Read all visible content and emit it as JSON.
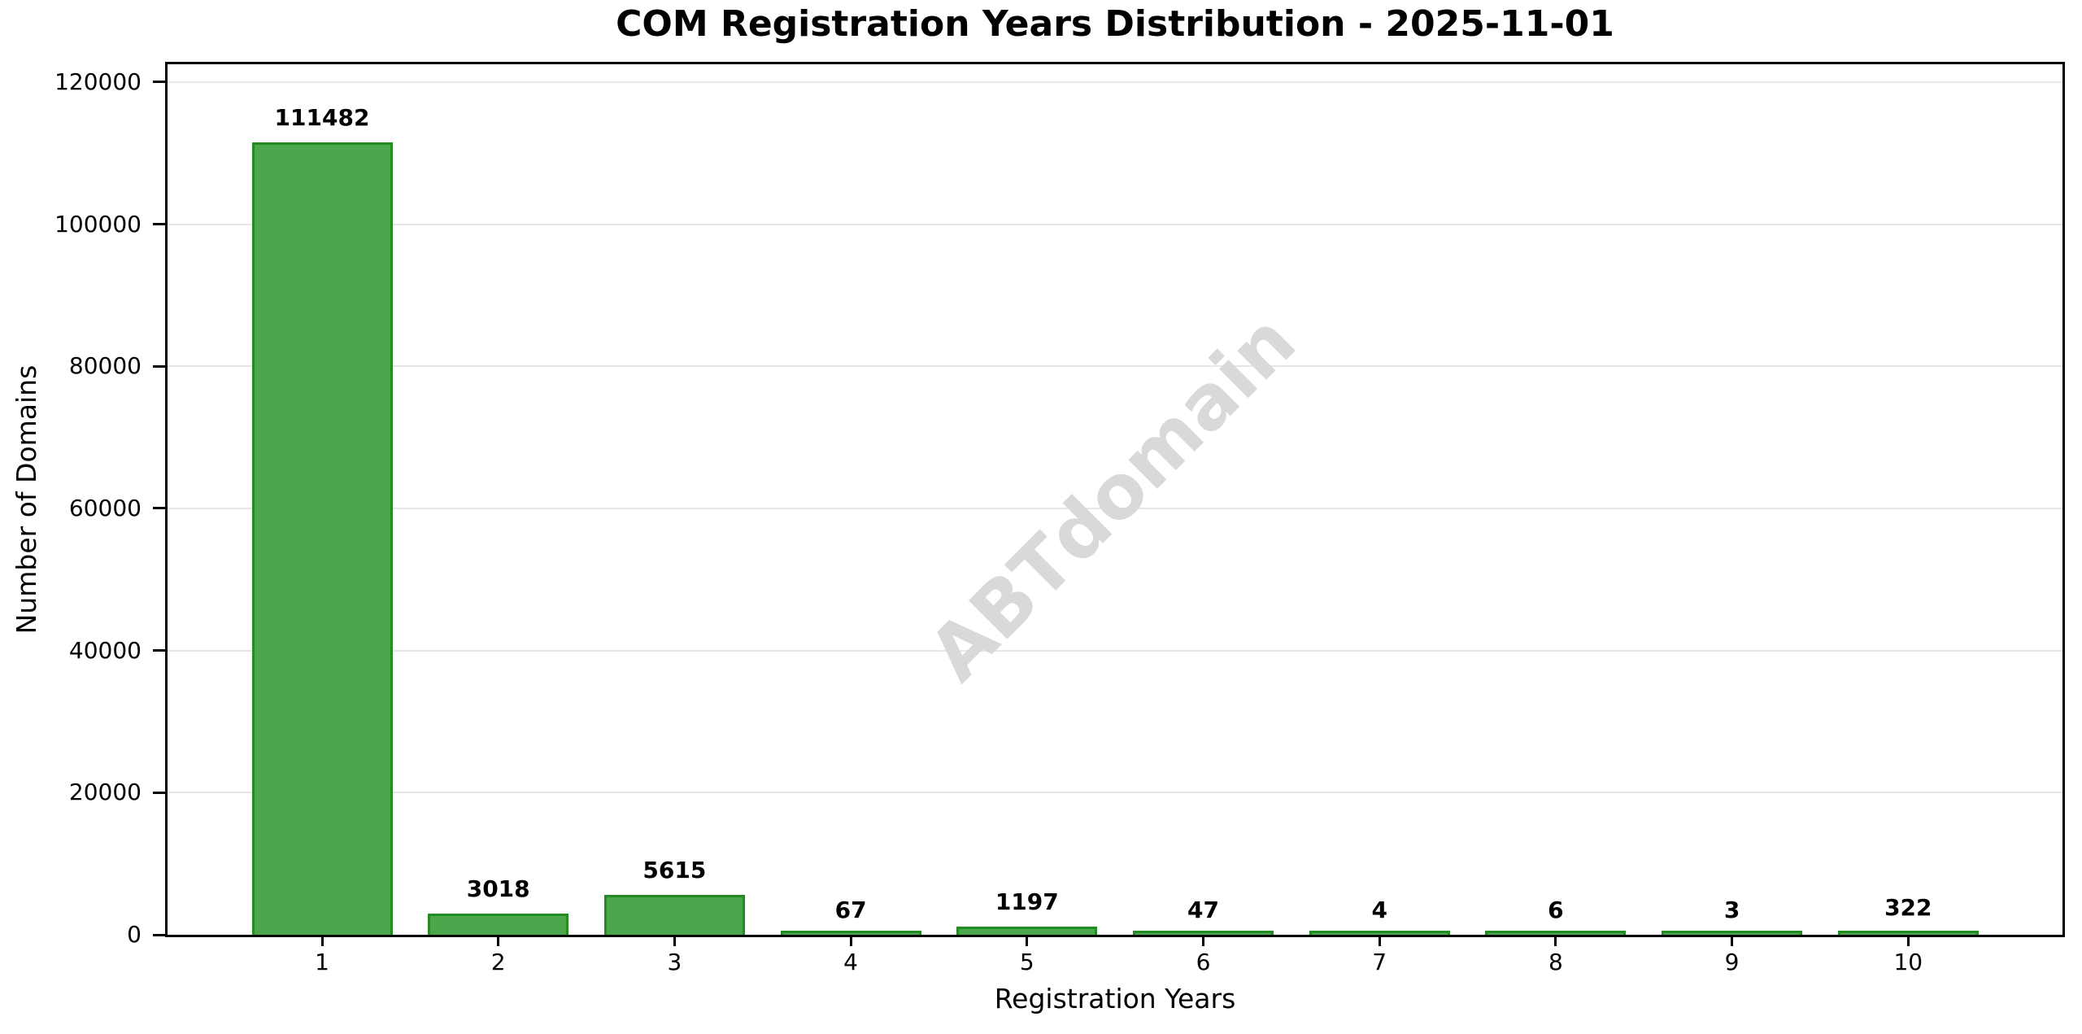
{
  "chart_data": {
    "type": "bar",
    "title": "COM Registration Years Distribution - 2025-11-01",
    "xlabel": "Registration Years",
    "ylabel": "Number of Domains",
    "categories": [
      "1",
      "2",
      "3",
      "4",
      "5",
      "6",
      "7",
      "8",
      "9",
      "10"
    ],
    "values": [
      111482,
      3018,
      5615,
      67,
      1197,
      47,
      4,
      6,
      3,
      322
    ],
    "ylim": [
      0,
      122500
    ],
    "yticks": [
      0,
      20000,
      40000,
      60000,
      80000,
      100000,
      120000
    ],
    "grid": "horizontal-major",
    "legend": "none",
    "watermark": "ABTdomain",
    "colors": {
      "bar_fill": "#4CA64C",
      "bar_edge": "#228B22",
      "gridline": "#e7e7e7",
      "spine": "#000000",
      "text": "#000000",
      "watermark": "#d9d9d9"
    }
  }
}
